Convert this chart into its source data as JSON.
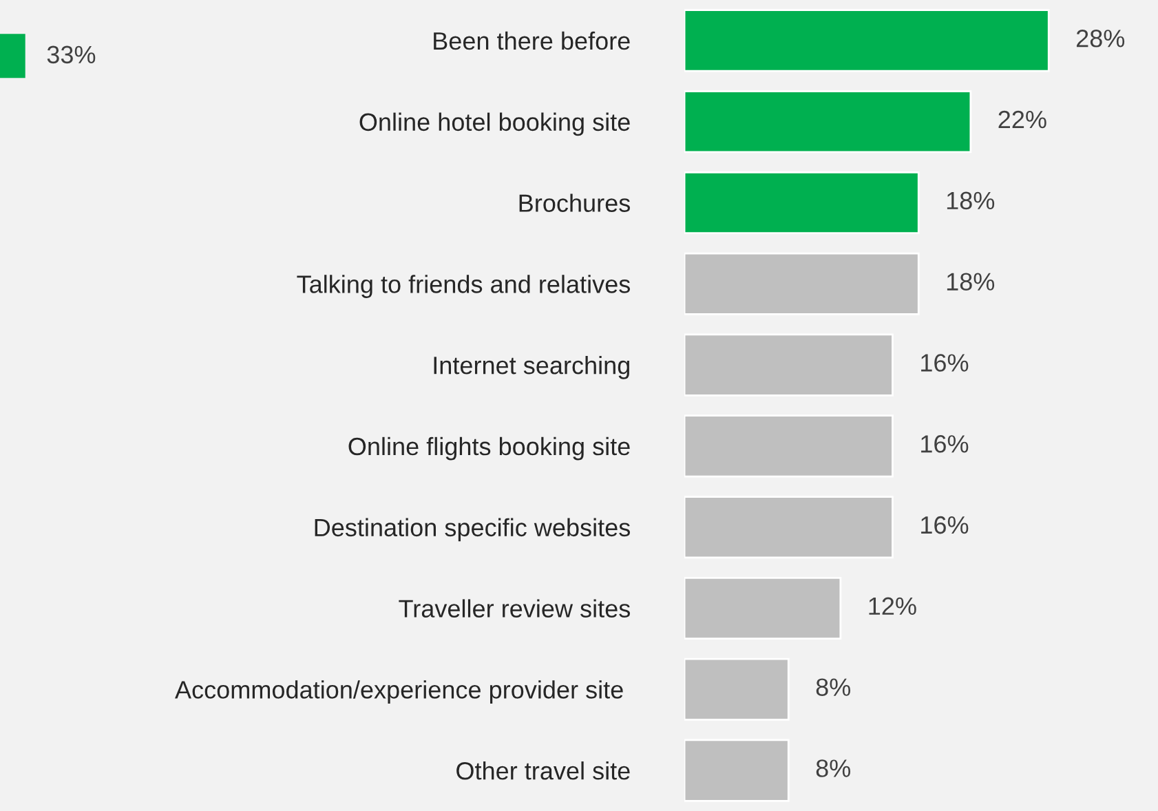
{
  "chart_data": {
    "type": "bar",
    "orientation": "horizontal",
    "categories": [
      "Been there before",
      "Online hotel booking site",
      "Brochures",
      "Talking to friends and relatives",
      "Internet searching",
      "Online flights booking site",
      "Destination specific websites",
      "Traveller review sites",
      "Accommodation/experience provider site ",
      "Other travel site"
    ],
    "values": [
      28,
      22,
      18,
      18,
      16,
      16,
      16,
      12,
      8,
      8
    ],
    "value_labels": [
      "28%",
      "22%",
      "18%",
      "18%",
      "16%",
      "16%",
      "16%",
      "12%",
      "8%",
      "8%"
    ],
    "colors": [
      "#00b050",
      "#00b050",
      "#00b050",
      "#bfbfbf",
      "#bfbfbf",
      "#bfbfbf",
      "#bfbfbf",
      "#bfbfbf",
      "#bfbfbf",
      "#bfbfbf"
    ],
    "annotations": [
      "33%"
    ],
    "grid": false,
    "legend": false
  }
}
